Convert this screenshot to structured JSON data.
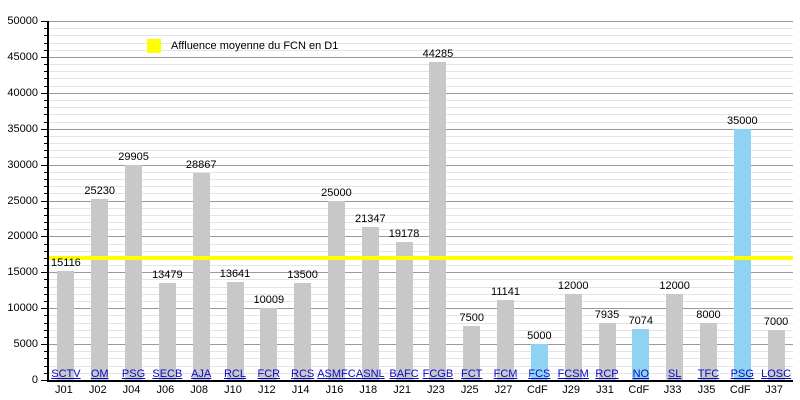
{
  "legend": {
    "label": "Affluence moyenne du FCN en D1",
    "swatch_color": "#ffff00"
  },
  "colors": {
    "bar_default": "#c8c8c8",
    "bar_cup": "#8fd2f2",
    "average_line": "#ffff00",
    "major_grid": "#9a9a9a",
    "minor_grid": "#e4e4e4",
    "axis": "#000000",
    "link_blue": "#0909c8",
    "text": "#000000",
    "background": "#ffffff"
  },
  "chart_data": {
    "type": "bar",
    "title": "",
    "xlabel": "",
    "ylabel": "",
    "ylim": [
      0,
      50000
    ],
    "y_tick_step": 5000,
    "y_minor_step": 1000,
    "y_ticks": [
      0,
      5000,
      10000,
      15000,
      20000,
      25000,
      30000,
      35000,
      40000,
      45000,
      50000
    ],
    "grid": "on",
    "legend_position": "top-left",
    "legend_label": "Affluence moyenne du FCN en D1",
    "average_line_value": 17000,
    "bars": [
      {
        "opponent": "SCTV",
        "matchday": "J01",
        "value": 15116,
        "cup": false
      },
      {
        "opponent": "OM",
        "matchday": "J02",
        "value": 25230,
        "cup": false
      },
      {
        "opponent": "PSG",
        "matchday": "J04",
        "value": 29905,
        "cup": false
      },
      {
        "opponent": "SECB",
        "matchday": "J06",
        "value": 13479,
        "cup": false
      },
      {
        "opponent": "AJA",
        "matchday": "J08",
        "value": 28867,
        "cup": false
      },
      {
        "opponent": "RCL",
        "matchday": "J10",
        "value": 13641,
        "cup": false
      },
      {
        "opponent": "FCR",
        "matchday": "J12",
        "value": 10009,
        "cup": false
      },
      {
        "opponent": "RCS",
        "matchday": "J14",
        "value": 13500,
        "cup": false
      },
      {
        "opponent": "ASMFC",
        "matchday": "J16",
        "value": 25000,
        "cup": false
      },
      {
        "opponent": "ASNL",
        "matchday": "J18",
        "value": 21347,
        "cup": false
      },
      {
        "opponent": "BAFC",
        "matchday": "J21",
        "value": 19178,
        "cup": false
      },
      {
        "opponent": "FCGB",
        "matchday": "J23",
        "value": 44285,
        "cup": false
      },
      {
        "opponent": "FCT",
        "matchday": "J25",
        "value": 7500,
        "cup": false
      },
      {
        "opponent": "FCM",
        "matchday": "J27",
        "value": 11141,
        "cup": false
      },
      {
        "opponent": "FCS",
        "matchday": "CdF",
        "value": 5000,
        "cup": true
      },
      {
        "opponent": "FCSM",
        "matchday": "J29",
        "value": 12000,
        "cup": false
      },
      {
        "opponent": "RCP",
        "matchday": "J31",
        "value": 7935,
        "cup": false
      },
      {
        "opponent": "NO",
        "matchday": "CdF",
        "value": 7074,
        "cup": true
      },
      {
        "opponent": "SL",
        "matchday": "J33",
        "value": 12000,
        "cup": false
      },
      {
        "opponent": "TFC",
        "matchday": "J35",
        "value": 8000,
        "cup": false
      },
      {
        "opponent": "PSG",
        "matchday": "CdF",
        "value": 35000,
        "cup": true
      },
      {
        "opponent": "LOSC",
        "matchday": "J37",
        "value": 7000,
        "cup": false
      }
    ]
  }
}
